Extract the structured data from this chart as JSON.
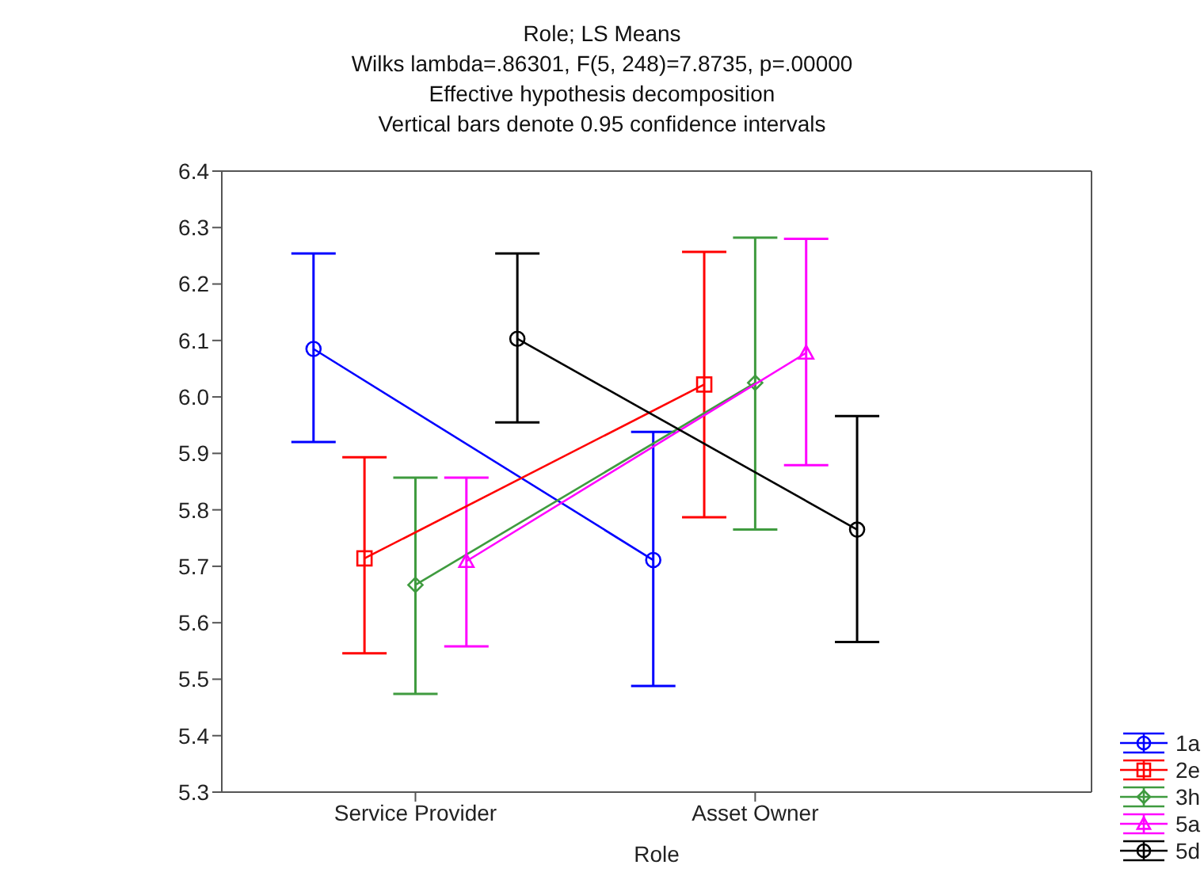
{
  "chart_data": {
    "type": "line",
    "title": "Role; LS Means",
    "subtitle": "Wilks lambda=.86301, F(5, 248)=7.8735, p=.00000\nEffective hypothesis decomposition\nVertical bars denote 0.95 confidence intervals",
    "xlabel": "Role",
    "categories": [
      "Service Provider",
      "Asset Owner"
    ],
    "series": [
      {
        "name": "1a",
        "color": "#0000ff",
        "marker": "circle",
        "values": [
          6.085,
          5.711
        ],
        "errors": [
          [
            5.92,
            6.254
          ],
          [
            5.488,
            5.938
          ]
        ]
      },
      {
        "name": "2e",
        "color": "#ff0000",
        "marker": "square",
        "values": [
          5.714,
          6.022
        ],
        "errors": [
          [
            5.546,
            5.893
          ],
          [
            5.787,
            6.257
          ]
        ]
      },
      {
        "name": "3h",
        "color": "#3f9b3f",
        "marker": "diamond",
        "values": [
          5.667,
          6.025
        ],
        "errors": [
          [
            5.474,
            5.857
          ],
          [
            5.765,
            6.282
          ]
        ]
      },
      {
        "name": "5a",
        "color": "#ff00ff",
        "marker": "triangle",
        "values": [
          5.709,
          6.078
        ],
        "errors": [
          [
            5.558,
            5.857
          ],
          [
            5.879,
            6.28
          ]
        ]
      },
      {
        "name": "5d",
        "color": "#000000",
        "marker": "circle",
        "values": [
          6.103,
          5.765
        ],
        "errors": [
          [
            5.955,
            6.254
          ],
          [
            5.566,
            5.966
          ]
        ]
      }
    ],
    "ylim": [
      5.3,
      6.4
    ],
    "yticks": [
      {
        "value": 5.3,
        "label": "5.3"
      },
      {
        "value": 5.4,
        "label": "5.4"
      },
      {
        "value": 5.5,
        "label": "5.5"
      },
      {
        "value": 5.6,
        "label": "5.6"
      },
      {
        "value": 5.7,
        "label": "5.7"
      },
      {
        "value": 5.8,
        "label": "5.8"
      },
      {
        "value": 5.9,
        "label": "5.9"
      },
      {
        "value": 6.0,
        "label": "6.0"
      },
      {
        "value": 6.1,
        "label": "6.1"
      },
      {
        "value": 6.2,
        "label": "6.2"
      },
      {
        "value": 6.3,
        "label": "6.3"
      },
      {
        "value": 6.4,
        "label": "6.4"
      }
    ],
    "legend": "bottom right",
    "line_style": "solid"
  }
}
